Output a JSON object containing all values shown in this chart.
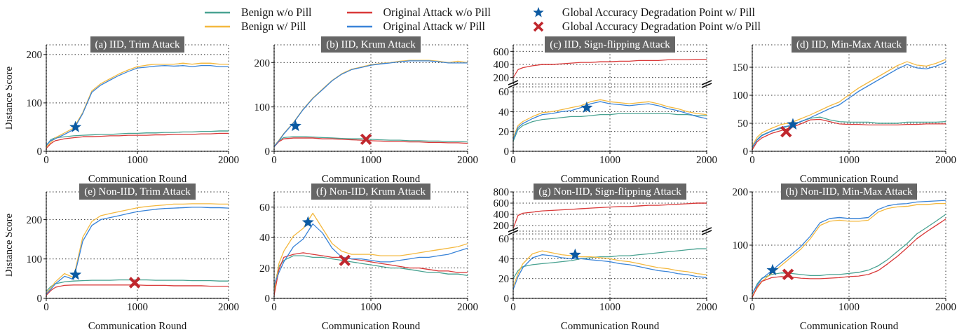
{
  "chart_data": [
    {
      "type": "line",
      "title": "(a) IID, Trim Attack",
      "xlabel": "Communication Round",
      "ylabel": "Distance Score",
      "x": [
        0,
        50,
        100,
        200,
        300,
        400,
        500,
        600,
        700,
        800,
        900,
        1000,
        1100,
        1200,
        1300,
        1400,
        1500,
        1600,
        1700,
        1800,
        1900,
        2000
      ],
      "xlim": [
        0,
        2000
      ],
      "xticks": [
        0,
        1000,
        2000
      ],
      "ylim": [
        0,
        220
      ],
      "yticks": [
        0,
        100,
        200
      ],
      "grid": true,
      "legend": "top",
      "series": [
        {
          "name": "Benign w/o Pill",
          "color": "#4aa392",
          "values": [
            11,
            24,
            28,
            30,
            32,
            33,
            34,
            35,
            35,
            36,
            37,
            37,
            38,
            38,
            39,
            39,
            40,
            40,
            41,
            41,
            42,
            42
          ]
        },
        {
          "name": "Benign w/ Pill",
          "color": "#f4b940",
          "values": [
            9,
            18,
            28,
            38,
            48,
            80,
            125,
            140,
            150,
            160,
            168,
            175,
            178,
            180,
            180,
            180,
            182,
            180,
            182,
            182,
            180,
            180
          ]
        },
        {
          "name": "Original Attack w/o Pill",
          "color": "#d93a3a",
          "values": [
            6,
            16,
            22,
            26,
            28,
            30,
            30,
            31,
            32,
            32,
            33,
            33,
            33,
            34,
            34,
            35,
            35,
            35,
            36,
            36,
            37,
            37
          ]
        },
        {
          "name": "Original Attack w/ Pill",
          "color": "#3a84d8",
          "values": [
            13,
            22,
            26,
            35,
            45,
            78,
            122,
            137,
            147,
            157,
            165,
            172,
            174,
            176,
            177,
            176,
            177,
            175,
            177,
            177,
            175,
            175
          ]
        },
        {
          "type": "scatter",
          "name": "Global Accuracy Degradation Point w/ Pill",
          "color": "#0b5aa2",
          "marker": "star",
          "x": [
            320
          ],
          "values": [
            50
          ]
        }
      ]
    },
    {
      "type": "line",
      "title": "(b) IID, Krum Attack",
      "xlabel": "Communication Round",
      "x": [
        0,
        50,
        100,
        200,
        300,
        400,
        500,
        600,
        700,
        800,
        900,
        1000,
        1100,
        1200,
        1300,
        1400,
        1500,
        1600,
        1700,
        1800,
        1900,
        2000
      ],
      "xlim": [
        0,
        2000
      ],
      "xticks": [
        0,
        1000,
        2000
      ],
      "ylim": [
        0,
        240
      ],
      "yticks": [
        0,
        100,
        200
      ],
      "grid": true,
      "legend": "top",
      "series": [
        {
          "name": "Benign w/o Pill",
          "color": "#4aa392",
          "values": [
            12,
            24,
            31,
            33,
            33,
            32,
            31,
            30,
            29,
            28,
            28,
            27,
            26,
            25,
            25,
            24,
            24,
            23,
            23,
            22,
            22,
            21
          ]
        },
        {
          "name": "Benign w/ Pill",
          "color": "#f4b940",
          "values": [
            10,
            25,
            40,
            65,
            95,
            120,
            140,
            160,
            175,
            185,
            190,
            195,
            198,
            200,
            203,
            205,
            205,
            205,
            203,
            200,
            203,
            200
          ]
        },
        {
          "name": "Original Attack w/o Pill",
          "color": "#d93a3a",
          "values": [
            10,
            22,
            28,
            30,
            30,
            30,
            28,
            28,
            27,
            26,
            25,
            24,
            23,
            22,
            22,
            21,
            21,
            20,
            20,
            19,
            19,
            18
          ]
        },
        {
          "name": "Original Attack w/ Pill",
          "color": "#3a84d8",
          "values": [
            10,
            24,
            39,
            64,
            94,
            119,
            139,
            159,
            174,
            184,
            189,
            194,
            197,
            199,
            202,
            204,
            204,
            204,
            202,
            199,
            199,
            199
          ]
        },
        {
          "type": "scatter",
          "name": "Global Accuracy Degradation Point w/o Pill",
          "color": "#c0272d",
          "marker": "cross",
          "x": [
            950
          ],
          "values": [
            27
          ]
        },
        {
          "type": "scatter",
          "name": "Global Accuracy Degradation Point w/ Pill",
          "color": "#0b5aa2",
          "marker": "star",
          "x": [
            220
          ],
          "values": [
            57
          ]
        }
      ]
    },
    {
      "type": "line",
      "title": "(c) IID, Sign-flipping Attack",
      "tick_labels": "y",
      "x": [
        0,
        50,
        100,
        200,
        300,
        400,
        500,
        600,
        700,
        800,
        900,
        1000,
        1100,
        1200,
        1300,
        1400,
        1500,
        1600,
        1700,
        1800,
        1900,
        2000
      ],
      "xlim": [
        0,
        2000
      ],
      "xticks": [
        0,
        1000,
        2000
      ],
      "ylim": [
        100,
        700
      ],
      "yticks": [
        200,
        400,
        600
      ],
      "grid": true,
      "legend": "top",
      "series": [
        {
          "name": "Original Attack w/o Pill",
          "color": "#d93a3a",
          "values": [
            200,
            320,
            350,
            380,
            400,
            400,
            410,
            420,
            430,
            430,
            440,
            440,
            450,
            450,
            460,
            460,
            460,
            470,
            470,
            470,
            480,
            480
          ]
        }
      ]
    },
    {
      "type": "line",
      "xlabel": "Communication Round",
      "x": [
        0,
        50,
        100,
        200,
        300,
        400,
        500,
        600,
        700,
        800,
        900,
        1000,
        1100,
        1200,
        1300,
        1400,
        1500,
        1600,
        1700,
        1800,
        1900,
        2000
      ],
      "xlim": [
        0,
        2000
      ],
      "xticks": [
        0,
        1000,
        2000
      ],
      "ylim": [
        0,
        65
      ],
      "yticks": [
        0,
        20,
        40,
        60
      ],
      "grid": true,
      "legend": "top",
      "series": [
        {
          "name": "Benign w/o Pill",
          "color": "#4aa392",
          "values": [
            10,
            22,
            26,
            30,
            32,
            33,
            34,
            35,
            35,
            36,
            37,
            37,
            38,
            38,
            38,
            38,
            38,
            38,
            37,
            37,
            36,
            36
          ]
        },
        {
          "name": "Benign w/ Pill",
          "color": "#f4b940",
          "values": [
            14,
            26,
            30,
            35,
            39,
            40,
            42,
            44,
            46,
            50,
            52,
            50,
            49,
            48,
            49,
            50,
            48,
            45,
            43,
            40,
            38,
            37
          ]
        },
        {
          "name": "Original Attack w/ Pill",
          "color": "#3a84d8",
          "values": [
            12,
            24,
            28,
            33,
            37,
            38,
            40,
            41,
            44,
            48,
            50,
            48,
            47,
            46,
            47,
            48,
            46,
            43,
            41,
            38,
            35,
            33
          ]
        },
        {
          "type": "scatter",
          "name": "Global Accuracy Degradation Point w/ Pill",
          "color": "#0b5aa2",
          "marker": "star",
          "x": [
            760
          ],
          "values": [
            44
          ]
        }
      ]
    },
    {
      "type": "line",
      "title": "(d) IID, Min-Max Attack",
      "xlabel": "Communication Round",
      "x": [
        0,
        50,
        100,
        200,
        300,
        400,
        500,
        600,
        700,
        800,
        900,
        1000,
        1100,
        1200,
        1300,
        1400,
        1500,
        1600,
        1700,
        1800,
        1900,
        2000
      ],
      "xlim": [
        0,
        2000
      ],
      "xticks": [
        0,
        1000,
        2000
      ],
      "ylim": [
        0,
        190
      ],
      "yticks": [
        0,
        50,
        100,
        150
      ],
      "grid": true,
      "legend": "top",
      "series": [
        {
          "name": "Benign w/o Pill",
          "color": "#4aa392",
          "values": [
            6,
            21,
            29,
            36,
            41,
            46,
            53,
            59,
            61,
            56,
            53,
            52,
            52,
            52,
            50,
            50,
            50,
            52,
            52,
            52,
            52,
            53
          ]
        },
        {
          "name": "Benign w/ Pill",
          "color": "#f4b940",
          "values": [
            10,
            25,
            33,
            41,
            48,
            51,
            58,
            65,
            73,
            81,
            88,
            101,
            113,
            123,
            133,
            143,
            153,
            160,
            154,
            152,
            157,
            164
          ]
        },
        {
          "name": "Original Attack w/o Pill",
          "color": "#d93a3a",
          "values": [
            3,
            17,
            24,
            32,
            37,
            42,
            49,
            56,
            57,
            53,
            49,
            48,
            48,
            47,
            47,
            47,
            47,
            48,
            48,
            49,
            49,
            49
          ]
        },
        {
          "name": "Original Attack w/ Pill",
          "color": "#3a84d8",
          "values": [
            8,
            20,
            28,
            36,
            43,
            46,
            53,
            60,
            68,
            76,
            83,
            95,
            107,
            117,
            127,
            137,
            147,
            155,
            149,
            147,
            152,
            159
          ]
        },
        {
          "type": "scatter",
          "name": "Global Accuracy Degradation Point w/o Pill",
          "color": "#c0272d",
          "marker": "cross",
          "x": [
            350
          ],
          "values": [
            35
          ]
        },
        {
          "type": "scatter",
          "name": "Global Accuracy Degradation Point w/ Pill",
          "color": "#0b5aa2",
          "marker": "star",
          "x": [
            420
          ],
          "values": [
            48
          ]
        }
      ]
    },
    {
      "type": "line",
      "title": "(e) Non-IID, Trim Attack",
      "xlabel": "Communication Round",
      "ylabel": "Distance Score",
      "x": [
        0,
        50,
        100,
        200,
        300,
        400,
        500,
        600,
        700,
        800,
        900,
        1000,
        1100,
        1200,
        1300,
        1400,
        1500,
        1600,
        1700,
        1800,
        1900,
        2000
      ],
      "xlim": [
        0,
        2000
      ],
      "xticks": [
        0,
        1000,
        2000
      ],
      "ylim": [
        0,
        270
      ],
      "yticks": [
        0,
        100,
        200
      ],
      "grid": true,
      "legend": "top",
      "series": [
        {
          "name": "Benign w/o Pill",
          "color": "#4aa392",
          "values": [
            18,
            30,
            37,
            42,
            44,
            45,
            46,
            46,
            46,
            47,
            47,
            47,
            47,
            46,
            46,
            46,
            46,
            45,
            45,
            45,
            44,
            44
          ]
        },
        {
          "name": "Benign w/ Pill",
          "color": "#f4b940",
          "values": [
            14,
            26,
            42,
            63,
            53,
            155,
            195,
            210,
            215,
            220,
            225,
            230,
            233,
            235,
            237,
            239,
            239,
            240,
            240,
            240,
            239,
            239
          ]
        },
        {
          "name": "Original Attack w/o Pill",
          "color": "#d93a3a",
          "values": [
            8,
            20,
            28,
            33,
            34,
            34,
            34,
            34,
            34,
            34,
            34,
            34,
            33,
            33,
            33,
            32,
            32,
            32,
            32,
            31,
            31,
            31
          ]
        },
        {
          "name": "Original Attack w/ Pill",
          "color": "#3a84d8",
          "values": [
            11,
            23,
            37,
            56,
            48,
            145,
            185,
            200,
            205,
            210,
            215,
            220,
            223,
            226,
            228,
            229,
            230,
            231,
            231,
            230,
            230,
            229
          ]
        },
        {
          "type": "scatter",
          "name": "Global Accuracy Degradation Point w/o Pill",
          "color": "#c0272d",
          "marker": "cross",
          "x": [
            970
          ],
          "values": [
            40
          ]
        },
        {
          "type": "scatter",
          "name": "Global Accuracy Degradation Point w/ Pill",
          "color": "#0b5aa2",
          "marker": "star",
          "x": [
            320
          ],
          "values": [
            60
          ]
        }
      ]
    },
    {
      "type": "line",
      "title": "(f) Non-IID, Krum Attack",
      "xlabel": "Communication Round",
      "x": [
        0,
        50,
        100,
        200,
        300,
        400,
        500,
        600,
        700,
        800,
        900,
        1000,
        1100,
        1200,
        1300,
        1400,
        1500,
        1600,
        1700,
        1800,
        1900,
        2000
      ],
      "xlim": [
        0,
        2000
      ],
      "xticks": [
        0,
        1000,
        2000
      ],
      "ylim": [
        0,
        70
      ],
      "yticks": [
        0,
        20,
        40,
        60
      ],
      "grid": true,
      "legend": "top",
      "series": [
        {
          "name": "Benign w/o Pill",
          "color": "#4aa392",
          "values": [
            7,
            21,
            25,
            28,
            28,
            27,
            27,
            26,
            25,
            24,
            23,
            22,
            21,
            20,
            20,
            19,
            18,
            17,
            17,
            16,
            16,
            15
          ]
        },
        {
          "name": "Benign w/ Pill",
          "color": "#f4b940",
          "values": [
            4,
            23,
            31,
            41,
            46,
            56,
            46,
            36,
            31,
            29,
            29,
            29,
            28,
            28,
            28,
            29,
            30,
            31,
            32,
            33,
            34,
            36
          ]
        },
        {
          "name": "Original Attack w/o Pill",
          "color": "#d93a3a",
          "values": [
            2,
            19,
            27,
            29,
            30,
            29,
            28,
            27,
            27,
            26,
            25,
            24,
            23,
            22,
            21,
            20,
            20,
            19,
            18,
            18,
            17,
            17
          ]
        },
        {
          "name": "Original Attack w/ Pill",
          "color": "#3a84d8",
          "values": [
            9,
            17,
            24,
            34,
            39,
            49,
            43,
            33,
            27,
            26,
            26,
            25,
            24,
            24,
            25,
            26,
            27,
            27,
            28,
            29,
            31,
            33
          ]
        },
        {
          "type": "scatter",
          "name": "Global Accuracy Degradation Point w/o Pill",
          "color": "#c0272d",
          "marker": "cross",
          "x": [
            730
          ],
          "values": [
            25
          ]
        },
        {
          "type": "scatter",
          "name": "Global Accuracy Degradation Point w/ Pill",
          "color": "#0b5aa2",
          "marker": "star",
          "x": [
            350
          ],
          "values": [
            50
          ]
        }
      ]
    },
    {
      "type": "line",
      "title": "(g) Non-IID, Sign-flipping Attack",
      "tick_labels": "y",
      "x": [
        0,
        50,
        100,
        200,
        300,
        400,
        500,
        600,
        700,
        800,
        900,
        1000,
        1100,
        1200,
        1300,
        1400,
        1500,
        1600,
        1700,
        1800,
        1900,
        2000
      ],
      "xlim": [
        0,
        2000
      ],
      "xticks": [
        0,
        1000,
        2000
      ],
      "ylim": [
        100,
        800
      ],
      "yticks": [
        200,
        400,
        600,
        800
      ],
      "grid": true,
      "legend": "top",
      "series": [
        {
          "name": "Original Attack w/o Pill",
          "color": "#d93a3a",
          "values": [
            150,
            380,
            420,
            440,
            460,
            470,
            480,
            490,
            500,
            510,
            520,
            530,
            540,
            540,
            550,
            560,
            560,
            570,
            580,
            590,
            600,
            600
          ]
        }
      ]
    },
    {
      "type": "line",
      "xlabel": "Communication Round",
      "x": [
        0,
        50,
        100,
        200,
        300,
        400,
        500,
        600,
        700,
        800,
        900,
        1000,
        1100,
        1200,
        1300,
        1400,
        1500,
        1600,
        1700,
        1800,
        1900,
        2000
      ],
      "xlim": [
        0,
        2000
      ],
      "xticks": [
        0,
        1000,
        2000
      ],
      "ylim": [
        0,
        65
      ],
      "yticks": [
        0,
        20,
        40,
        60
      ],
      "grid": true,
      "legend": "top",
      "series": [
        {
          "name": "Benign w/o Pill",
          "color": "#4aa392",
          "values": [
            20,
            28,
            32,
            34,
            35,
            36,
            37,
            38,
            40,
            41,
            42,
            42,
            43,
            43,
            44,
            45,
            46,
            47,
            48,
            49,
            50,
            50
          ]
        },
        {
          "name": "Benign w/ Pill",
          "color": "#f4b940",
          "values": [
            12,
            25,
            35,
            45,
            48,
            46,
            44,
            43,
            42,
            42,
            41,
            40,
            38,
            37,
            35,
            33,
            31,
            30,
            28,
            27,
            25,
            24
          ]
        },
        {
          "name": "Original Attack w/ Pill",
          "color": "#3a84d8",
          "values": [
            9,
            22,
            31,
            41,
            44,
            43,
            41,
            40,
            40,
            39,
            38,
            37,
            35,
            34,
            32,
            30,
            28,
            27,
            25,
            24,
            22,
            21
          ]
        },
        {
          "type": "scatter",
          "name": "Global Accuracy Degradation Point w/ Pill",
          "color": "#0b5aa2",
          "marker": "star",
          "x": [
            640
          ],
          "values": [
            44
          ]
        }
      ]
    },
    {
      "type": "line",
      "title": "(h) Non-IID, Min-Max Attack",
      "xlabel": "Communication Round",
      "x": [
        0,
        50,
        100,
        200,
        300,
        400,
        500,
        600,
        700,
        800,
        900,
        1000,
        1100,
        1200,
        1300,
        1400,
        1500,
        1600,
        1700,
        1800,
        1900,
        2000
      ],
      "xlim": [
        0,
        2000
      ],
      "xticks": [
        0,
        1000,
        2000
      ],
      "ylim": [
        0,
        200
      ],
      "yticks": [
        0,
        100,
        200
      ],
      "grid": true,
      "legend": "top",
      "series": [
        {
          "name": "Benign w/o Pill",
          "color": "#4aa392",
          "values": [
            8,
            27,
            38,
            45,
            48,
            47,
            45,
            43,
            43,
            45,
            45,
            47,
            49,
            53,
            61,
            73,
            88,
            103,
            121,
            133,
            145,
            158
          ]
        },
        {
          "name": "Benign w/ Pill",
          "color": "#f4b940",
          "values": [
            4,
            19,
            32,
            47,
            62,
            77,
            92,
            112,
            137,
            145,
            147,
            145,
            145,
            147,
            162,
            169,
            172,
            173,
            176,
            176,
            178,
            178
          ]
        },
        {
          "name": "Original Attack w/o Pill",
          "color": "#d93a3a",
          "values": [
            2,
            21,
            32,
            39,
            41,
            40,
            38,
            37,
            37,
            38,
            39,
            41,
            42,
            45,
            52,
            65,
            79,
            95,
            112,
            125,
            137,
            149
          ]
        },
        {
          "name": "Original Attack w/ Pill",
          "color": "#3a84d8",
          "values": [
            10,
            24,
            37,
            52,
            67,
            82,
            97,
            117,
            142,
            150,
            152,
            150,
            150,
            152,
            167,
            174,
            177,
            178,
            181,
            182,
            183,
            184
          ]
        },
        {
          "type": "scatter",
          "name": "Global Accuracy Degradation Point w/o Pill",
          "color": "#c0272d",
          "marker": "cross",
          "x": [
            370
          ],
          "values": [
            45
          ]
        },
        {
          "type": "scatter",
          "name": "Global Accuracy Degradation Point w/ Pill",
          "color": "#0b5aa2",
          "marker": "star",
          "x": [
            210
          ],
          "values": [
            53
          ]
        }
      ]
    }
  ]
}
